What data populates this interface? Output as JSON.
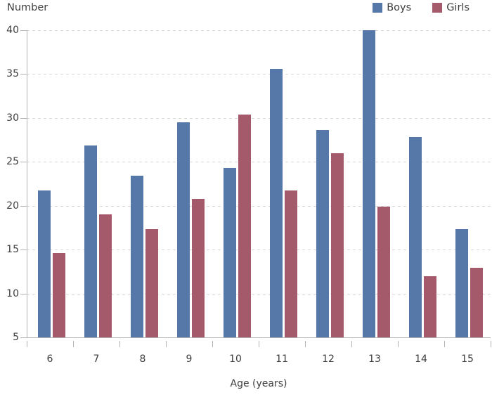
{
  "chart_data": {
    "type": "bar",
    "title": "",
    "ylabel": "Number",
    "xlabel": "Age (years)",
    "categories": [
      "6",
      "7",
      "8",
      "9",
      "10",
      "11",
      "12",
      "13",
      "14",
      "15"
    ],
    "series": [
      {
        "name": "Boys",
        "color": "#5578a8",
        "values": [
          21.7,
          26.9,
          23.4,
          29.5,
          24.3,
          35.6,
          28.6,
          40.0,
          27.8,
          17.3
        ]
      },
      {
        "name": "Girls",
        "color": "#a55a6b",
        "values": [
          14.6,
          19.0,
          17.3,
          20.8,
          30.4,
          21.7,
          26.0,
          19.9,
          12.0,
          12.9
        ]
      }
    ],
    "ylim": [
      5,
      40
    ],
    "ytick_step": 5,
    "ytick_labels": [
      "5",
      "10",
      "15",
      "20",
      "25",
      "30",
      "35",
      "40"
    ],
    "grid": "horizontal-dashed",
    "legend_position": "top-right",
    "colors": {
      "axis": "#b4b4b4",
      "grid": "#d8d8d8",
      "text": "#3e3e3e"
    }
  }
}
